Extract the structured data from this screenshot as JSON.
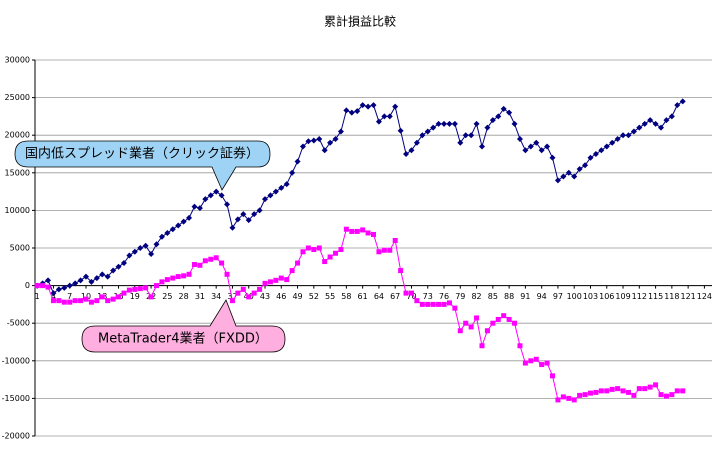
{
  "chart_data": {
    "type": "line",
    "title": "累計損益比較",
    "x": [
      1,
      2,
      3,
      4,
      5,
      6,
      7,
      8,
      9,
      10,
      11,
      12,
      13,
      14,
      15,
      16,
      17,
      18,
      19,
      20,
      21,
      22,
      23,
      24,
      25,
      26,
      27,
      28,
      29,
      30,
      31,
      32,
      33,
      34,
      35,
      36,
      37,
      38,
      39,
      40,
      41,
      42,
      43,
      44,
      45,
      46,
      47,
      48,
      49,
      50,
      51,
      52,
      53,
      54,
      55,
      56,
      57,
      58,
      59,
      60,
      61,
      62,
      63,
      64,
      65,
      66,
      67,
      68,
      69,
      70,
      71,
      72,
      73,
      74,
      75,
      76,
      77,
      78,
      79,
      80,
      81,
      82,
      83,
      84,
      85,
      86,
      87,
      88,
      89,
      90,
      91,
      92,
      93,
      94,
      95,
      96,
      97,
      98,
      99,
      100,
      101,
      102,
      103,
      104,
      105,
      106,
      107,
      108,
      109,
      110,
      111,
      112,
      113,
      114,
      115,
      116,
      117,
      118,
      119,
      120
    ],
    "series": [
      {
        "name": "国内低スプレッド業者（クリック証券）",
        "color": "#000080",
        "marker": "diamond",
        "values": [
          0,
          300,
          700,
          -1000,
          -500,
          -300,
          0,
          300,
          700,
          1200,
          500,
          1000,
          1500,
          1200,
          2000,
          2500,
          3000,
          4000,
          4500,
          5000,
          5300,
          4200,
          5500,
          6500,
          7000,
          7500,
          8000,
          8500,
          9000,
          10500,
          10300,
          11500,
          12000,
          12500,
          12000,
          10800,
          7700,
          8800,
          9500,
          8700,
          9500,
          10000,
          11500,
          12000,
          12500,
          13000,
          13500,
          15000,
          16500,
          18500,
          19200,
          19300,
          19500,
          18000,
          19000,
          19500,
          20500,
          23300,
          23000,
          23200,
          24000,
          23800,
          24000,
          21800,
          22500,
          22500,
          23800,
          20600,
          17500,
          18000,
          19000,
          20000,
          20500,
          21000,
          21500,
          21500,
          21500,
          21500,
          19000,
          20000,
          20000,
          21500,
          18500,
          21000,
          22000,
          22500,
          23500,
          23000,
          21500,
          19500,
          18000,
          18500,
          19000,
          18000,
          18500,
          17000,
          14000,
          14500,
          15000,
          14500,
          15500,
          16000,
          17000,
          17500,
          18000,
          18500,
          19000,
          19500,
          20000,
          20000,
          20500,
          21000,
          21500,
          22000,
          21500,
          21000,
          22000,
          22500,
          24000,
          24500
        ]
      },
      {
        "name": "MetaTrader4業者（FXDD）",
        "color": "#ff00ff",
        "marker": "square",
        "values": [
          0,
          0,
          -200,
          -2000,
          -2000,
          -2200,
          -2200,
          -2000,
          -2000,
          -1800,
          -2200,
          -2000,
          -1500,
          -2000,
          -1800,
          -1500,
          -1000,
          -600,
          -500,
          -400,
          -300,
          -1500,
          0,
          500,
          800,
          1000,
          1200,
          1300,
          1500,
          2800,
          2700,
          3300,
          3500,
          3700,
          3000,
          1500,
          -2000,
          -1000,
          -500,
          -1500,
          -1000,
          -500,
          300,
          500,
          700,
          1000,
          800,
          2000,
          3000,
          4500,
          5000,
          4800,
          5000,
          3200,
          3800,
          4300,
          4800,
          7500,
          7200,
          7200,
          7400,
          7000,
          6800,
          4500,
          4700,
          4700,
          6000,
          2000,
          -1000,
          -1000,
          -2000,
          -2500,
          -2500,
          -2500,
          -2500,
          -2500,
          -2300,
          -3000,
          -6000,
          -5000,
          -5500,
          -4300,
          -8000,
          -6000,
          -5000,
          -4500,
          -4000,
          -4500,
          -5000,
          -8000,
          -10300,
          -10000,
          -9800,
          -10500,
          -10300,
          -12000,
          -15200,
          -14800,
          -15000,
          -15200,
          -14600,
          -14500,
          -14300,
          -14200,
          -14000,
          -14000,
          -13800,
          -13700,
          -14000,
          -14200,
          -14600,
          -13700,
          -13700,
          -13500,
          -13200,
          -14500,
          -14700,
          -14500,
          -14000,
          -14000
        ]
      }
    ],
    "xlim": [
      0.6,
      125.4
    ],
    "xticks": [
      1,
      4,
      7,
      10,
      13,
      16,
      19,
      22,
      25,
      28,
      31,
      34,
      37,
      40,
      43,
      46,
      49,
      52,
      55,
      58,
      61,
      64,
      67,
      70,
      73,
      76,
      79,
      82,
      85,
      88,
      91,
      94,
      97,
      100,
      103,
      106,
      109,
      112,
      115,
      118,
      121,
      124
    ],
    "ylim": [
      -20000,
      30000
    ],
    "yticks": [
      -20000,
      -15000,
      -10000,
      -5000,
      0,
      5000,
      10000,
      15000,
      20000,
      25000,
      30000
    ],
    "grid": true
  }
}
